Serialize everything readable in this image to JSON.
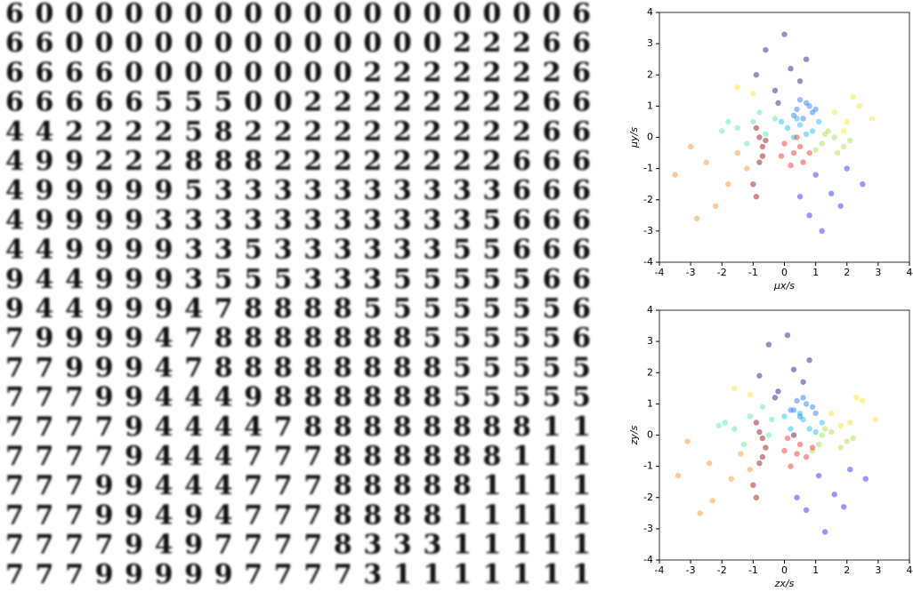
{
  "digit_grid": {
    "rows": [
      "60000000000000000006",
      "66000000000000022266",
      "66660000000022222226",
      "66666555002222222266",
      "44222258222222222266",
      "49922288822222222666",
      "49999953333333333666",
      "49999333333333335666",
      "44999933533333355666",
      "94499935553335555566",
      "94499947888855555556",
      "79999478888888555556",
      "77999478888888855555",
      "77799444988888855555",
      "77779444478888888811",
      "77779444777888888111",
      "77799444777888881111",
      "77799494777888811111",
      "77779497777833311111",
      "77799999777731111111"
    ]
  },
  "chart_data": [
    {
      "type": "scatter",
      "xlabel": "μx/s",
      "ylabel": "μy/s",
      "xlim": [
        -4,
        4
      ],
      "ylim": [
        -4,
        4
      ],
      "xticks": [
        -4,
        -3,
        -2,
        -1,
        0,
        1,
        2,
        3,
        4
      ],
      "yticks": [
        -4,
        -3,
        -2,
        -1,
        0,
        1,
        2,
        3,
        4
      ],
      "series": [
        {
          "color": "#ff8a20",
          "x": [
            -2.5,
            -1.8,
            -3.0,
            -1.5,
            -2.2,
            -3.5,
            -1.2,
            -2.8
          ],
          "values": [
            -0.8,
            -1.5,
            -0.3,
            -0.5,
            -2.2,
            -1.2,
            -1.0,
            -2.6
          ]
        },
        {
          "color": "#50e8a0",
          "x": [
            -1.5,
            -1.0,
            -0.6,
            -2.0,
            -1.2,
            -0.3,
            -0.8,
            -1.8
          ],
          "values": [
            0.3,
            0.5,
            0.1,
            0.2,
            -0.2,
            0.6,
            0.8,
            0.5
          ]
        },
        {
          "color": "#ffe020",
          "x": [
            1.6,
            2.0,
            2.4,
            2.8,
            1.9,
            2.2,
            -1.5,
            -1.0
          ],
          "values": [
            0.8,
            0.5,
            1.0,
            0.6,
            0.2,
            1.3,
            1.6,
            1.4
          ]
        },
        {
          "color": "#0a0a80",
          "x": [
            -0.3,
            0.2,
            -0.6,
            0.5,
            0.0,
            -0.2,
            0.7,
            -0.9
          ],
          "values": [
            1.5,
            2.2,
            2.8,
            1.8,
            3.3,
            1.1,
            2.5,
            2.0
          ]
        },
        {
          "color": "#1a1aff",
          "x": [
            1.0,
            1.5,
            2.0,
            0.8,
            1.2,
            1.8,
            2.5,
            0.5
          ],
          "values": [
            -1.2,
            -1.8,
            -1.0,
            -2.5,
            -3.0,
            -2.2,
            -1.5,
            -1.9
          ]
        },
        {
          "color": "#a0e040",
          "x": [
            1.2,
            1.6,
            1.9,
            1.4,
            2.1,
            1.0,
            1.7,
            1.3
          ],
          "values": [
            -0.2,
            0.0,
            -0.3,
            0.2,
            -0.1,
            -0.4,
            -0.5,
            0.1
          ]
        },
        {
          "color": "#10b8f0",
          "x": [
            0.1,
            0.5,
            0.9,
            0.3,
            1.1,
            0.7,
            -0.1,
            0.4
          ],
          "values": [
            0.3,
            0.4,
            0.2,
            0.0,
            0.5,
            0.1,
            0.5,
            0.6
          ]
        },
        {
          "color": "#2070ff",
          "x": [
            0.4,
            0.7,
            0.9,
            0.5,
            0.8,
            0.3,
            1.0,
            0.6
          ],
          "values": [
            0.9,
            1.1,
            0.8,
            1.2,
            1.0,
            0.7,
            0.9,
            0.6
          ]
        },
        {
          "color": "#ff2020",
          "x": [
            0.0,
            0.3,
            0.6,
            0.2,
            0.5,
            -0.1,
            0.8,
            0.4
          ],
          "values": [
            -0.2,
            -0.5,
            -0.8,
            -0.9,
            -0.3,
            -0.6,
            -0.5,
            0.0
          ]
        },
        {
          "color": "#8a0000",
          "x": [
            -0.9,
            -0.7,
            -0.8,
            -1.0,
            -0.6,
            -0.8,
            -0.9,
            -0.7
          ],
          "values": [
            0.3,
            -0.3,
            -0.8,
            -1.5,
            -0.1,
            0.0,
            -1.9,
            -0.6
          ]
        }
      ]
    },
    {
      "type": "scatter",
      "xlabel": "zx/s",
      "ylabel": "zy/s",
      "xlim": [
        -4,
        4
      ],
      "ylim": [
        -4,
        4
      ],
      "xticks": [
        -4,
        -3,
        -2,
        -1,
        0,
        1,
        2,
        3,
        4
      ],
      "yticks": [
        -4,
        -3,
        -2,
        -1,
        0,
        1,
        2,
        3,
        4
      ],
      "series": [
        {
          "color": "#ff8a20",
          "x": [
            -2.4,
            -1.7,
            -3.1,
            -1.4,
            -2.3,
            -3.4,
            -1.1,
            -2.7
          ],
          "values": [
            -0.9,
            -1.4,
            -0.2,
            -0.6,
            -2.1,
            -1.3,
            -1.1,
            -2.5
          ]
        },
        {
          "color": "#50e8a0",
          "x": [
            -1.6,
            -1.1,
            -0.5,
            -2.1,
            -1.3,
            -0.4,
            -0.7,
            -1.9
          ],
          "values": [
            0.2,
            0.6,
            0.0,
            0.3,
            -0.3,
            0.5,
            0.9,
            0.4
          ]
        },
        {
          "color": "#ffe020",
          "x": [
            1.5,
            2.1,
            2.5,
            2.9,
            1.8,
            2.3,
            -1.6,
            -1.1
          ],
          "values": [
            0.7,
            0.4,
            1.1,
            0.5,
            0.3,
            1.2,
            1.5,
            1.3
          ]
        },
        {
          "color": "#0a0a80",
          "x": [
            -0.2,
            0.3,
            -0.5,
            0.6,
            0.1,
            -0.3,
            0.8,
            -0.8
          ],
          "values": [
            1.4,
            2.1,
            2.9,
            1.7,
            3.2,
            1.2,
            2.4,
            1.9
          ]
        },
        {
          "color": "#1a1aff",
          "x": [
            1.1,
            1.6,
            2.1,
            0.7,
            1.3,
            1.9,
            2.6,
            0.4
          ],
          "values": [
            -1.3,
            -1.9,
            -1.1,
            -2.4,
            -3.1,
            -2.3,
            -1.4,
            -2.0
          ]
        },
        {
          "color": "#a0e040",
          "x": [
            1.1,
            1.5,
            2.0,
            1.3,
            2.2,
            0.9,
            1.8,
            1.2
          ],
          "values": [
            -0.3,
            0.1,
            -0.2,
            0.2,
            -0.1,
            -0.5,
            -0.4,
            0.0
          ]
        },
        {
          "color": "#10b8f0",
          "x": [
            0.2,
            0.6,
            1.0,
            0.3,
            1.2,
            0.8,
            0.0,
            0.5
          ],
          "values": [
            0.2,
            0.5,
            0.1,
            0.0,
            0.4,
            0.2,
            0.6,
            0.7
          ]
        },
        {
          "color": "#2070ff",
          "x": [
            0.3,
            0.6,
            0.9,
            0.4,
            0.7,
            0.2,
            1.0,
            0.5
          ],
          "values": [
            0.8,
            1.2,
            0.9,
            1.1,
            1.0,
            0.8,
            0.7,
            0.6
          ]
        },
        {
          "color": "#ff2020",
          "x": [
            0.1,
            0.4,
            0.7,
            0.2,
            0.5,
            0.0,
            0.9,
            0.3
          ],
          "values": [
            -0.1,
            -0.6,
            -0.7,
            -1.0,
            -0.3,
            -0.5,
            -0.4,
            0.0
          ]
        },
        {
          "color": "#8a0000",
          "x": [
            -0.9,
            -0.6,
            -0.8,
            -1.0,
            -0.7,
            -0.8,
            -0.9,
            -0.7
          ],
          "values": [
            0.4,
            -0.4,
            -0.9,
            -1.6,
            -0.1,
            0.1,
            -2.0,
            -0.7
          ]
        }
      ]
    }
  ]
}
